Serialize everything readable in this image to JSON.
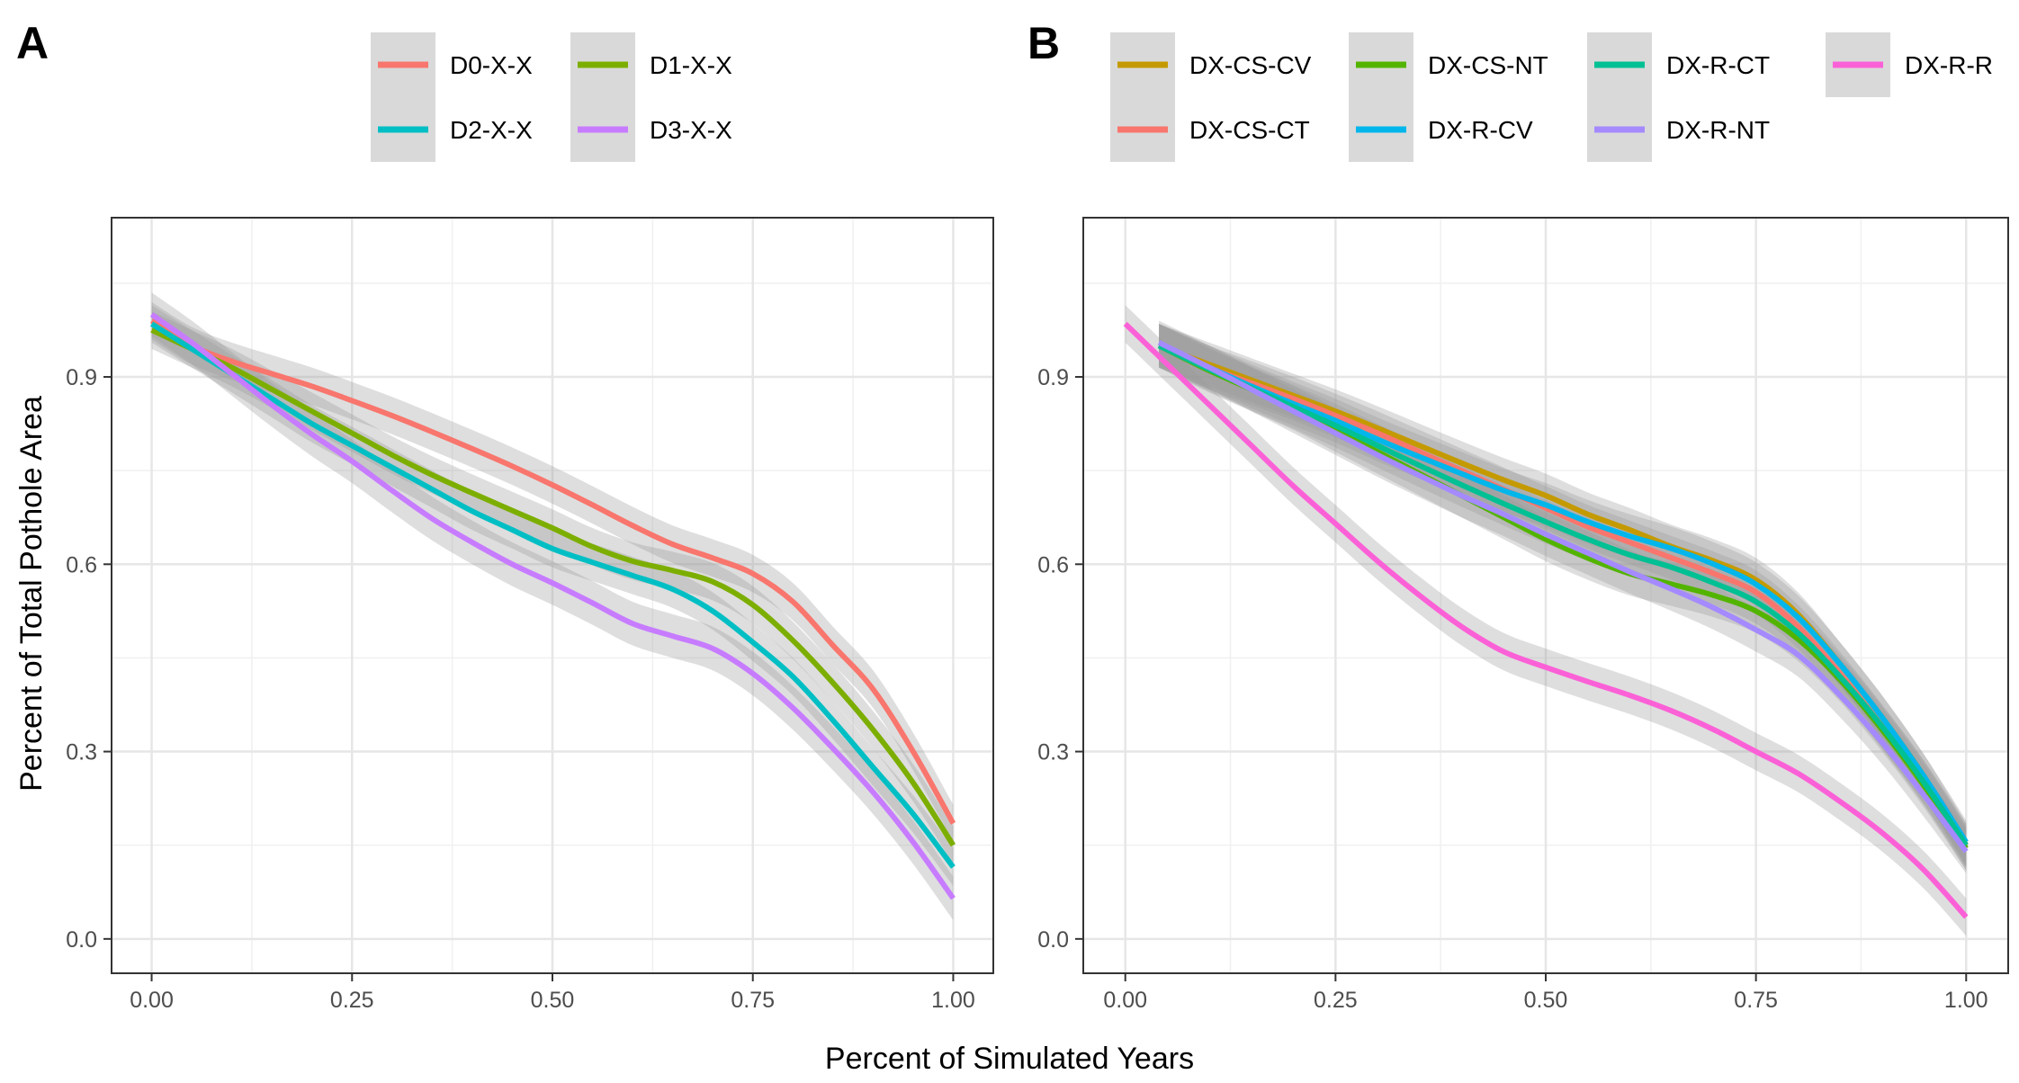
{
  "figure": {
    "xlabel": "Percent of Simulated Years",
    "ylabel": "Percent of Total Pothole Area"
  },
  "chart_data": [
    {
      "panel": "A",
      "type": "line",
      "title": "",
      "xlabel": "Percent of Simulated Years",
      "ylabel": "Percent of Total Pothole Area",
      "xlim": [
        -0.05,
        1.05
      ],
      "ylim": [
        -0.055,
        1.155
      ],
      "xticks": [
        0.0,
        0.25,
        0.5,
        0.75,
        1.0
      ],
      "xtick_labels": [
        "0.00",
        "0.25",
        "0.50",
        "0.75",
        "1.00"
      ],
      "yticks": [
        0.0,
        0.3,
        0.6,
        0.9
      ],
      "ytick_labels": [
        "0.0",
        "0.3",
        "0.6",
        "0.9"
      ],
      "grid": true,
      "confidence_band": true,
      "legend_position": "top",
      "legend_layout": {
        "columns": 2,
        "order": [
          0,
          2,
          1,
          3
        ]
      },
      "x": [
        0.0,
        0.05,
        0.1,
        0.15,
        0.2,
        0.25,
        0.3,
        0.35,
        0.4,
        0.45,
        0.5,
        0.55,
        0.6,
        0.65,
        0.7,
        0.75,
        0.8,
        0.85,
        0.9,
        0.95,
        1.0
      ],
      "series": [
        {
          "name": "D0-X-X",
          "color": "#F8766D",
          "band": 0.03,
          "values": [
            0.99,
            0.95,
            0.925,
            0.905,
            0.885,
            0.862,
            0.838,
            0.812,
            0.785,
            0.757,
            0.727,
            0.695,
            0.662,
            0.632,
            0.61,
            0.585,
            0.54,
            0.47,
            0.4,
            0.3,
            0.185
          ]
        },
        {
          "name": "D1-X-X",
          "color": "#7CAE00",
          "band": 0.03,
          "values": [
            0.975,
            0.945,
            0.915,
            0.88,
            0.845,
            0.81,
            0.775,
            0.743,
            0.714,
            0.686,
            0.658,
            0.628,
            0.605,
            0.59,
            0.572,
            0.535,
            0.478,
            0.41,
            0.335,
            0.25,
            0.15
          ]
        },
        {
          "name": "D2-X-X",
          "color": "#00BFC4",
          "band": 0.03,
          "values": [
            0.985,
            0.945,
            0.905,
            0.865,
            0.825,
            0.79,
            0.755,
            0.72,
            0.685,
            0.655,
            0.625,
            0.603,
            0.582,
            0.56,
            0.525,
            0.475,
            0.42,
            0.35,
            0.275,
            0.2,
            0.115
          ]
        },
        {
          "name": "D3-X-X",
          "color": "#C77CFF",
          "band": 0.035,
          "values": [
            1.0,
            0.955,
            0.905,
            0.855,
            0.808,
            0.765,
            0.718,
            0.673,
            0.635,
            0.6,
            0.57,
            0.538,
            0.505,
            0.485,
            0.465,
            0.425,
            0.37,
            0.305,
            0.235,
            0.155,
            0.065
          ]
        }
      ]
    },
    {
      "panel": "B",
      "type": "line",
      "title": "",
      "xlabel": "Percent of Simulated Years",
      "ylabel": "",
      "xlim": [
        -0.05,
        1.05
      ],
      "ylim": [
        -0.055,
        1.155
      ],
      "xticks": [
        0.0,
        0.25,
        0.5,
        0.75,
        1.0
      ],
      "xtick_labels": [
        "0.00",
        "0.25",
        "0.50",
        "0.75",
        "1.00"
      ],
      "yticks": [
        0.0,
        0.3,
        0.6,
        0.9
      ],
      "ytick_labels": [
        "0.0",
        "0.3",
        "0.6",
        "0.9"
      ],
      "grid": true,
      "confidence_band": true,
      "legend_position": "top",
      "legend_layout": {
        "columns": 4,
        "order": [
          0,
          1,
          2,
          3,
          4,
          5,
          6
        ]
      },
      "series": [
        {
          "name": "DX-CS-CV",
          "color": "#C49A00",
          "band": 0.035,
          "x": [
            0.04,
            0.1,
            0.15,
            0.2,
            0.25,
            0.3,
            0.35,
            0.4,
            0.45,
            0.5,
            0.55,
            0.6,
            0.65,
            0.7,
            0.75,
            0.8,
            0.85,
            0.9,
            0.95,
            1.0
          ],
          "values": [
            0.95,
            0.92,
            0.895,
            0.87,
            0.845,
            0.818,
            0.79,
            0.762,
            0.735,
            0.71,
            0.68,
            0.655,
            0.628,
            0.605,
            0.575,
            0.52,
            0.44,
            0.355,
            0.26,
            0.15
          ]
        },
        {
          "name": "DX-CS-CT",
          "color": "#F8766D",
          "band": 0.035,
          "x": [
            0.04,
            0.1,
            0.15,
            0.2,
            0.25,
            0.3,
            0.35,
            0.4,
            0.45,
            0.5,
            0.55,
            0.6,
            0.65,
            0.7,
            0.75,
            0.8,
            0.85,
            0.9,
            0.95,
            1.0
          ],
          "values": [
            0.95,
            0.915,
            0.89,
            0.865,
            0.838,
            0.81,
            0.78,
            0.75,
            0.72,
            0.69,
            0.66,
            0.635,
            0.61,
            0.585,
            0.555,
            0.5,
            0.425,
            0.34,
            0.25,
            0.145
          ]
        },
        {
          "name": "DX-CS-NT",
          "color": "#53B400",
          "band": 0.035,
          "x": [
            0.04,
            0.1,
            0.15,
            0.2,
            0.25,
            0.3,
            0.35,
            0.4,
            0.45,
            0.5,
            0.55,
            0.6,
            0.65,
            0.7,
            0.75,
            0.8,
            0.85,
            0.9,
            0.95,
            1.0
          ],
          "values": [
            0.95,
            0.91,
            0.88,
            0.85,
            0.815,
            0.78,
            0.745,
            0.71,
            0.675,
            0.64,
            0.61,
            0.585,
            0.568,
            0.55,
            0.525,
            0.48,
            0.415,
            0.335,
            0.245,
            0.145
          ]
        },
        {
          "name": "DX-R-CV",
          "color": "#00B6EB",
          "band": 0.035,
          "x": [
            0.04,
            0.1,
            0.15,
            0.2,
            0.25,
            0.3,
            0.35,
            0.4,
            0.45,
            0.5,
            0.55,
            0.6,
            0.65,
            0.7,
            0.75,
            0.8,
            0.85,
            0.9,
            0.95,
            1.0
          ],
          "values": [
            0.95,
            0.915,
            0.885,
            0.857,
            0.83,
            0.8,
            0.772,
            0.745,
            0.718,
            0.695,
            0.668,
            0.645,
            0.625,
            0.6,
            0.568,
            0.515,
            0.44,
            0.355,
            0.26,
            0.155
          ]
        },
        {
          "name": "DX-R-CT",
          "color": "#00C094",
          "band": 0.035,
          "x": [
            0.04,
            0.1,
            0.15,
            0.2,
            0.25,
            0.3,
            0.35,
            0.4,
            0.45,
            0.5,
            0.55,
            0.6,
            0.65,
            0.7,
            0.75,
            0.8,
            0.85,
            0.9,
            0.95,
            1.0
          ],
          "values": [
            0.95,
            0.912,
            0.882,
            0.852,
            0.822,
            0.79,
            0.758,
            0.727,
            0.697,
            0.668,
            0.64,
            0.615,
            0.595,
            0.57,
            0.54,
            0.49,
            0.42,
            0.34,
            0.25,
            0.15
          ]
        },
        {
          "name": "DX-R-NT",
          "color": "#A58AFF",
          "band": 0.035,
          "x": [
            0.04,
            0.1,
            0.15,
            0.2,
            0.25,
            0.3,
            0.35,
            0.4,
            0.45,
            0.5,
            0.55,
            0.6,
            0.65,
            0.7,
            0.75,
            0.8,
            0.85,
            0.9,
            0.95,
            1.0
          ],
          "values": [
            0.955,
            0.915,
            0.88,
            0.845,
            0.81,
            0.775,
            0.742,
            0.71,
            0.68,
            0.648,
            0.618,
            0.588,
            0.56,
            0.53,
            0.495,
            0.455,
            0.39,
            0.315,
            0.23,
            0.14
          ]
        },
        {
          "name": "DX-R-R",
          "color": "#FB61D7",
          "band": 0.03,
          "x": [
            0.0,
            0.05,
            0.1,
            0.15,
            0.2,
            0.25,
            0.3,
            0.35,
            0.4,
            0.45,
            0.5,
            0.55,
            0.6,
            0.65,
            0.7,
            0.75,
            0.8,
            0.85,
            0.9,
            0.95,
            1.0
          ],
          "values": [
            0.985,
            0.92,
            0.855,
            0.79,
            0.725,
            0.665,
            0.605,
            0.55,
            0.5,
            0.46,
            0.435,
            0.412,
            0.39,
            0.365,
            0.335,
            0.3,
            0.265,
            0.22,
            0.17,
            0.11,
            0.035
          ]
        }
      ]
    }
  ]
}
